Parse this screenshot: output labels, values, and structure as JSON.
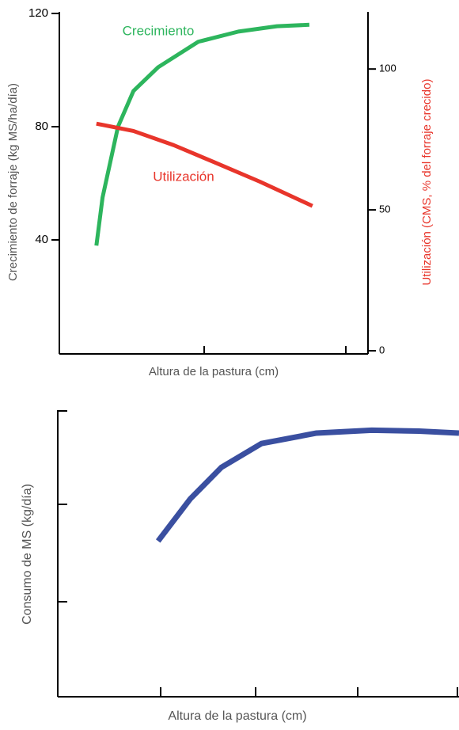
{
  "chart_data": [
    {
      "type": "line",
      "ylabel": "Crecimiento de forraje (kg MS/ha/día)",
      "y2label": "Utilización (CMS, % del forraje crecido)",
      "xlabel": "Altura de la pastura (cm)",
      "xlim": [
        0,
        10
      ],
      "ylim": [
        0,
        120
      ],
      "yticks": [
        40,
        80,
        120
      ],
      "y2lim": [
        0,
        120
      ],
      "y2ticks": [
        0,
        50,
        100
      ],
      "series": [
        {
          "name": "Crecimiento",
          "color": "#2db55d",
          "x": [
            1.2,
            1.4,
            1.9,
            2.4,
            3.2,
            4.5,
            5.8,
            7.05,
            8.1
          ],
          "values": [
            38,
            55,
            80,
            92.6,
            101,
            110,
            113.6,
            115.5,
            116
          ]
        },
        {
          "name": "Utilización",
          "color": "#e8352b",
          "axis": "y2",
          "x": [
            1.2,
            2.4,
            3.7,
            5,
            6.5,
            8.2
          ],
          "values": [
            80.6,
            78,
            73,
            67,
            60,
            51.4
          ]
        }
      ]
    },
    {
      "type": "line",
      "ylabel": "Consumo de MS (kg/día)",
      "xlabel": "Altura de la pastura (cm)",
      "xlim": [
        0,
        4
      ],
      "ylim": [
        0,
        3
      ],
      "series": [
        {
          "color": "#3a4fa0",
          "x": [
            1.0,
            1.32,
            1.63,
            2.03,
            2.58,
            3.13,
            3.6,
            4.0
          ],
          "values": [
            1.63,
            2.07,
            2.4,
            2.65,
            2.76,
            2.79,
            2.78,
            2.76
          ]
        }
      ]
    }
  ]
}
